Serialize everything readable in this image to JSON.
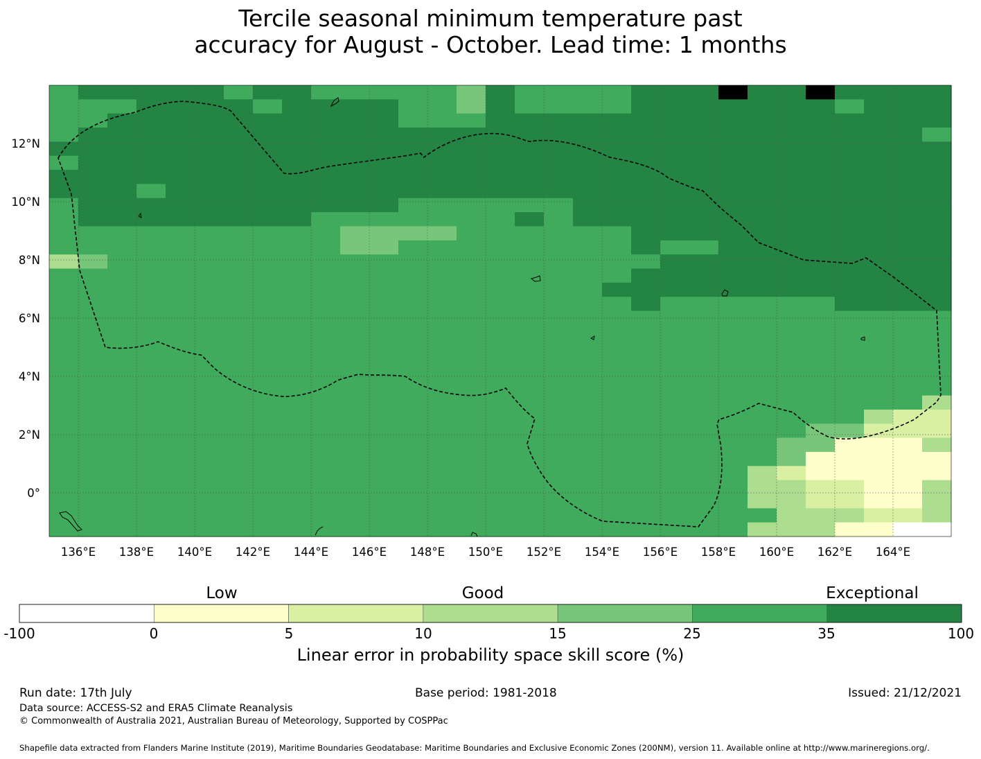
{
  "title_line1": "Tercile seasonal minimum temperature past",
  "title_line2": "accuracy for August - October. Lead time: 1 months",
  "map": {
    "lon_range": [
      135.0,
      166.0
    ],
    "lat_range": [
      -1.5,
      14.0
    ],
    "x_ticks": [
      "136°E",
      "138°E",
      "140°E",
      "142°E",
      "144°E",
      "146°E",
      "148°E",
      "150°E",
      "152°E",
      "154°E",
      "156°E",
      "158°E",
      "160°E",
      "162°E",
      "164°E"
    ],
    "y_ticks": [
      "12°N",
      "10°N",
      "8°N",
      "6°N",
      "4°N",
      "2°N",
      "0°"
    ],
    "gridlines": true,
    "eez_boundary_style": "black dashed line",
    "skill_grid": [
      "5666665665555546555566676676666",
      "5556666566665546555566666665666",
      "5566666666665556666666666666666",
      "5666666666666666666666666666665",
      "6666666666666666666666666666666",
      "5666666666666666666666666666666",
      "6666666666666666666666666666666",
      "6665666666666666666666666666666",
      "5666666666665555556666666666666",
      "5666666665555555656666666666666",
      "5555555555444455555566666666666",
      "5555555555445555555565566666666",
      "3455555555555555555556666666666",
      "5555555555555555555566666666666",
      "5555555555555555555666666666666",
      "5555555555555555555565555556666",
      "5555555555555555555555555555555",
      "5555555555555555555555555555555",
      "5555555555555555555555555555555",
      "5555555555555555555555555555555",
      "5555555555555555555555555555555",
      "5555555555555555555555555555555",
      "5555555555555555555555555555553",
      "5555555555555555555555555555322",
      "5555555555555555555555555544222",
      "5555555555555555555555555441113",
      "5555555555555555555555555411111",
      "5555555555555555555555553211111",
      "5555555555555555555555553322113",
      "5555555555555555555555553322113",
      "5555555555555555555555555333223",
      "5555555555555555555555553331100"
    ]
  },
  "colorbar": {
    "category_labels": [
      "Low",
      "Good",
      "Exceptional"
    ],
    "ticks": [
      "-100",
      "0",
      "5",
      "10",
      "15",
      "25",
      "35",
      "100"
    ],
    "colors": [
      "#ffffff",
      "#ffffcc",
      "#d9f0a3",
      "#addd8e",
      "#78c679",
      "#41ab5d",
      "#238443"
    ],
    "label": "Linear error in probability space skill score (%)"
  },
  "footer": {
    "run_date": "Run date: 17th July",
    "base_period": "Base period: 1981-2018",
    "issued": "Issued: 21/12/2021",
    "data_source": "Data source: ACCESS-S2 and ERA5 Climate Reanalysis",
    "copyright": "© Commonwealth of Australia 2021, Australian Bureau of Meteorology, Supported by COSPPac",
    "shapefile_note": "Shapefile data extracted from Flanders Marine Institute (2019), Maritime Boundaries Geodatabase: Maritime Boundaries and Exclusive Economic Zones (200NM), version 11. Available online at http://www.marineregions.org/."
  }
}
